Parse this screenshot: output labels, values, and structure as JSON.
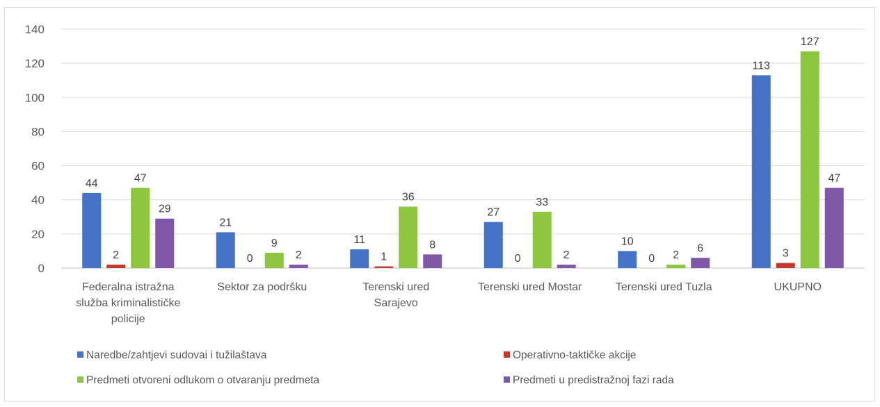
{
  "chart_data": {
    "type": "bar",
    "title": "",
    "xlabel": "",
    "ylabel": "",
    "ylim": [
      0,
      140
    ],
    "yticks": [
      0,
      20,
      40,
      60,
      80,
      100,
      120,
      140
    ],
    "grid": true,
    "legend_position": "bottom",
    "categories": [
      [
        "Federalna istražna",
        "služba kriminalističke",
        "policije"
      ],
      [
        "Sektor za podršku"
      ],
      [
        "Terenski ured",
        "Sarajevo"
      ],
      [
        "Terenski ured Mostar"
      ],
      [
        "Terenski ured Tuzla"
      ],
      [
        "UKUPNO"
      ]
    ],
    "series": [
      {
        "name": "Naredbe/zahtjevi sudovai i tužilaštava",
        "color": "#4472C4",
        "values": [
          44,
          21,
          11,
          27,
          10,
          113
        ]
      },
      {
        "name": "Operativno-taktičke akcije",
        "color": "#C0392B",
        "values": [
          2,
          0,
          1,
          0,
          0,
          3
        ]
      },
      {
        "name": "Predmeti otvoreni odlukom o otvaranju predmeta",
        "color": "#8DC63F",
        "values": [
          47,
          9,
          36,
          33,
          2,
          127
        ]
      },
      {
        "name": "Predmeti u predistražnoj fazi rada",
        "color": "#7E57A6",
        "values": [
          29,
          2,
          8,
          2,
          6,
          47
        ]
      }
    ]
  }
}
